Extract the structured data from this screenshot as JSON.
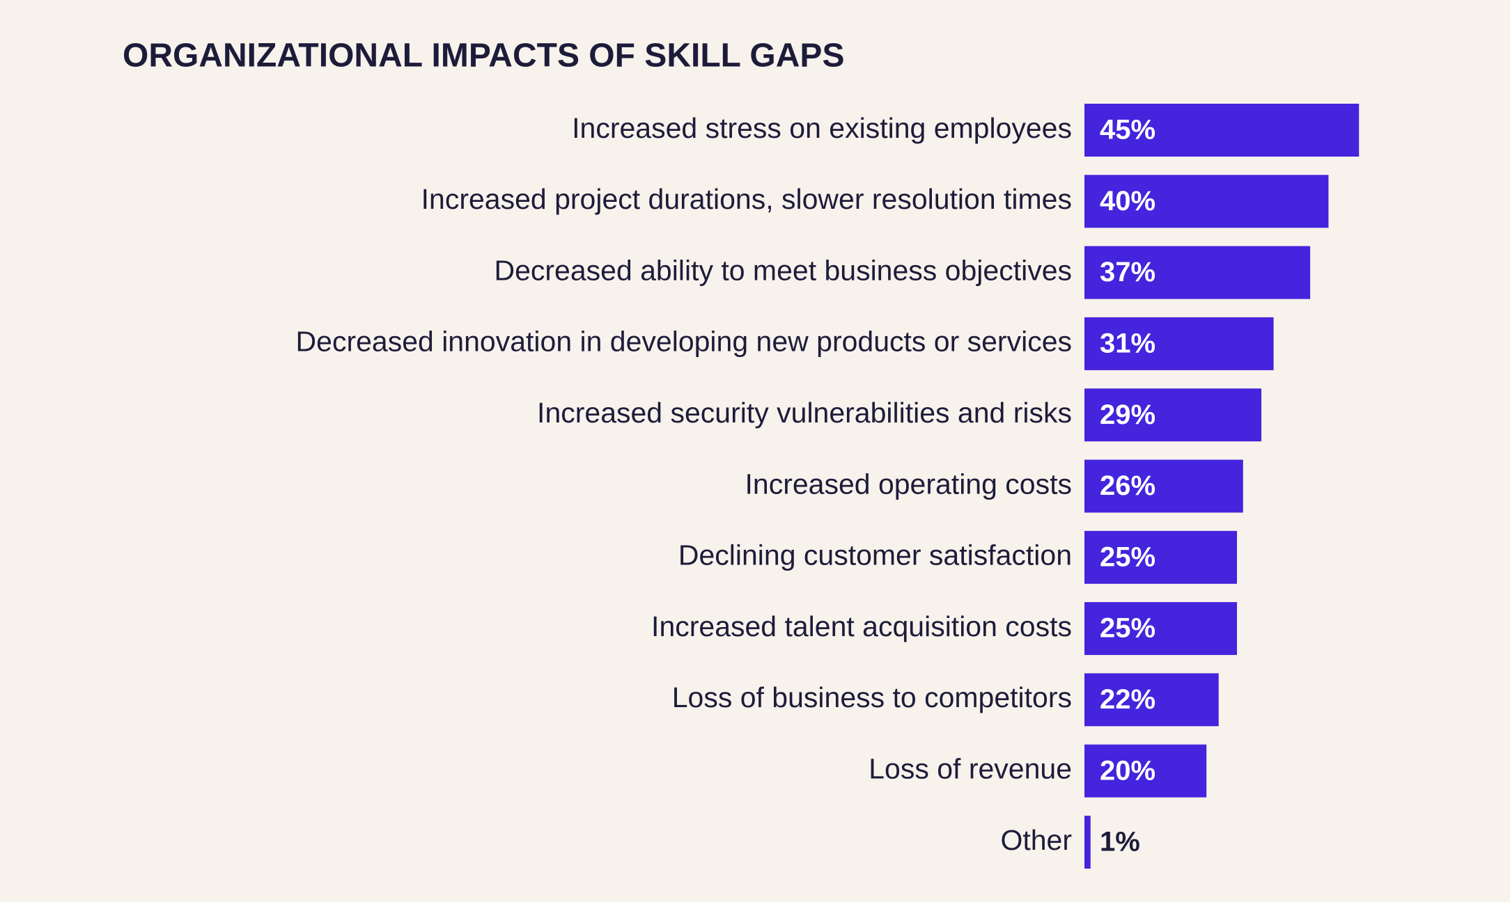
{
  "chart_data": {
    "type": "bar",
    "orientation": "horizontal",
    "title": "ORGANIZATIONAL IMPACTS OF SKILL GAPS",
    "categories": [
      "Increased stress on existing employees",
      "Increased project durations, slower resolution times",
      "Decreased ability to meet business objectives",
      "Decreased innovation in developing new products or services",
      "Increased security vulnerabilities and risks",
      "Increased operating costs",
      "Declining customer satisfaction",
      "Increased talent acquisition costs",
      "Loss of business to competitors",
      "Loss of revenue",
      "Other"
    ],
    "values": [
      45,
      40,
      37,
      31,
      29,
      26,
      25,
      25,
      22,
      20,
      1
    ],
    "value_labels": [
      "45%",
      "40%",
      "37%",
      "31%",
      "29%",
      "26%",
      "25%",
      "25%",
      "22%",
      "20%",
      "1%"
    ],
    "color": "#4424dc"
  }
}
